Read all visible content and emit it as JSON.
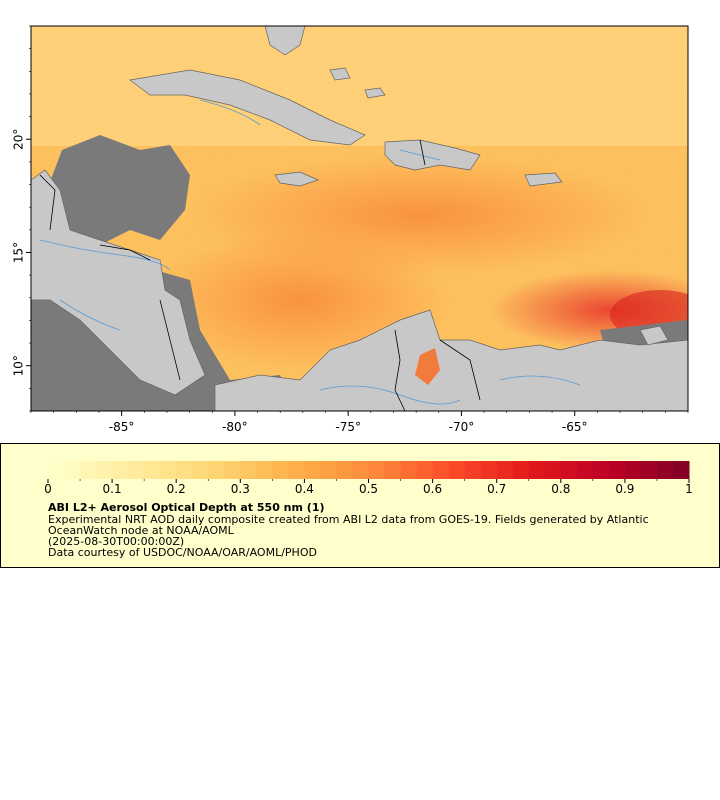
{
  "map": {
    "x_tick_labels": [
      "-85°",
      "-80°",
      "-75°",
      "-70°",
      "-65°"
    ],
    "x_tick_values": [
      -85,
      -80,
      -75,
      -70,
      -65
    ],
    "y_tick_labels": [
      "20°",
      "15°",
      "10°"
    ],
    "y_tick_values": [
      20,
      15,
      10
    ],
    "lon_range": [
      -89,
      -60
    ],
    "lat_range": [
      8,
      25
    ],
    "colors": {
      "land": "#c8c8c8",
      "missing_data": "#7a7a7a",
      "coastline": "#646464",
      "rivers": "#5b9bd5",
      "borders": "#000000"
    }
  },
  "legend": {
    "tick_labels": [
      "0",
      "0.1",
      "0.2",
      "0.3",
      "0.4",
      "0.5",
      "0.6",
      "0.7",
      "0.8",
      "0.9",
      "1"
    ],
    "range": [
      0,
      1
    ],
    "colormap": [
      "#ffffcc",
      "#ffeda0",
      "#fed976",
      "#feb24c",
      "#fd8d3c",
      "#fc4e2a",
      "#e31a1c",
      "#bd0026",
      "#800026"
    ],
    "title": "ABI L2+ Aerosol Optical Depth at 550 nm (1)",
    "line1": "Experimental NRT AOD daily composite created from ABI L2 data from GOES-19. Fields generated by Atlantic",
    "line2": "OceanWatch node at NOAA/AOML",
    "line3": "(2025-08-30T00:00:00Z)",
    "line4": "Data courtesy of USDOC/NOAA/OAR/AOML/PHOD"
  }
}
